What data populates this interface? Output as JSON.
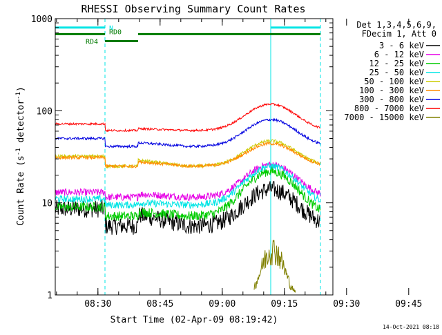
{
  "chart_data": {
    "type": "line",
    "title": "RHESSI Observing Summary Count Rates",
    "xlabel": "Start Time (02-Apr-09 08:19:42)",
    "ylabel": "Count Rate (s⁻¹ detector⁻¹)",
    "ylabel_parts": {
      "a": "Count Rate (s",
      "sup1": "-1",
      "b": " detector",
      "sup2": "-1",
      "c": ")"
    },
    "yscale": "log",
    "ylim": [
      1,
      1000
    ],
    "xlim_minutes": [
      0,
      67
    ],
    "x_ticks": [
      "08:30",
      "08:45",
      "09:00",
      "09:15",
      "09:30",
      "09:45"
    ],
    "y_ticks": [
      "1",
      "10",
      "100",
      "1000"
    ],
    "grid": false,
    "legend_header": [
      "Det 1,3,4,5,6,9,",
      "FDecim 1, Att 0"
    ],
    "legend_placement": "right",
    "footer": "14-Oct-2021 08:18",
    "flag_labels": [
      "N",
      "RD0",
      "RD4"
    ],
    "markers": [
      {
        "minute": 0,
        "style": "solid"
      },
      {
        "minute": 12,
        "style": "dashed"
      },
      {
        "minute": 52,
        "style": "solid"
      },
      {
        "minute": 64,
        "style": "dashed"
      }
    ],
    "flags": [
      {
        "label": "N",
        "y": 800,
        "segments": [
          [
            0,
            12
          ],
          [
            52,
            64
          ]
        ],
        "color": "#00e5e5"
      },
      {
        "label": "RD0",
        "y": 680,
        "segments": [
          [
            0,
            64
          ]
        ],
        "gap": [
          12,
          20
        ],
        "color": "#007a00"
      },
      {
        "label": "RD4",
        "y": 570,
        "segments": [
          [
            12,
            20
          ]
        ],
        "color": "#007a00"
      }
    ],
    "series": [
      {
        "name": "3 - 6 keV",
        "color": "#000000",
        "base": 5.6,
        "step": [
          8.6,
          7.4
        ],
        "peak": 14,
        "noise": 0.22
      },
      {
        "name": "6 - 12 keV",
        "color": "#e600e6",
        "base": 11.5,
        "step": [
          13,
          12.5
        ],
        "peak": 26,
        "noise": 0.09
      },
      {
        "name": "12 - 25 keV",
        "color": "#00cc00",
        "base": 7.2,
        "step": [
          9,
          8
        ],
        "peak": 22,
        "noise": 0.12
      },
      {
        "name": "25 - 50 keV",
        "color": "#00e5e5",
        "base": 9.5,
        "step": [
          11,
          10
        ],
        "peak": 25,
        "noise": 0.09
      },
      {
        "name": "50 - 100 keV",
        "color": "#cccc00",
        "base": 25,
        "step": [
          32,
          29
        ],
        "peak": 47,
        "noise": 0.04
      },
      {
        "name": "100 - 300 keV",
        "color": "#ff8c00",
        "base": 25,
        "step": [
          31,
          28
        ],
        "peak": 44,
        "noise": 0.04
      },
      {
        "name": "300 - 800 keV",
        "color": "#0000e0",
        "base": 41,
        "step": [
          50,
          45
        ],
        "peak": 80,
        "noise": 0.03
      },
      {
        "name": "800 - 7000 keV",
        "color": "#ff0000",
        "base": 61,
        "step": [
          72,
          64
        ],
        "peak": 118,
        "noise": 0.025
      },
      {
        "name": "7000 - 15000 keV",
        "color": "#808000",
        "base": 1,
        "step": [
          1,
          1
        ],
        "peak": 3.2,
        "noise": 0.3
      }
    ]
  }
}
